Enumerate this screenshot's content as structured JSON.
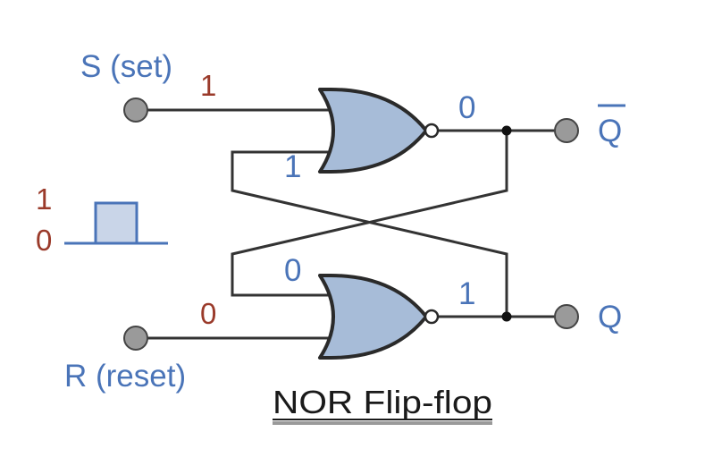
{
  "diagram": {
    "title": "NOR Flip-flop",
    "inputs": {
      "set": {
        "label": "S (set)",
        "value": "1"
      },
      "reset": {
        "label": "R (reset)",
        "value": "0"
      }
    },
    "outputs": {
      "q_bar": {
        "label": "Q",
        "value": "0"
      },
      "q": {
        "label": "Q",
        "value": "1"
      }
    },
    "feedback": {
      "top_gate_second_input": "1",
      "bottom_gate_second_input": "0"
    },
    "pulse": {
      "high_label": "1",
      "low_label": "0"
    },
    "colors": {
      "gate_fill": "#a7bcd8",
      "label_blue": "#4a74b8",
      "value_red": "#9a3a2a"
    }
  }
}
